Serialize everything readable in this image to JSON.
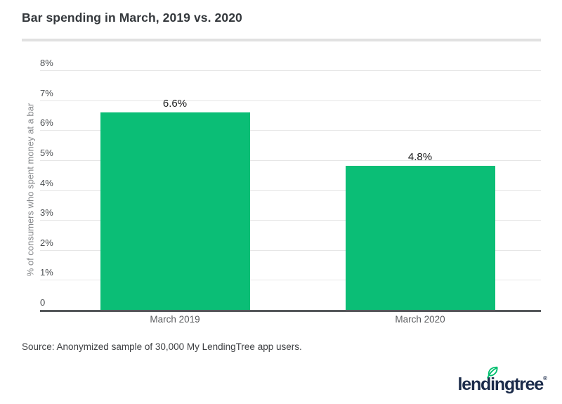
{
  "header": {
    "title": "Bar spending in March, 2019 vs. 2020"
  },
  "chart_data": {
    "type": "bar",
    "title": "Bar spending in March, 2019 vs. 2020",
    "categories": [
      "March 2019",
      "March 2020"
    ],
    "values": [
      6.6,
      4.8
    ],
    "value_labels": [
      "6.6%",
      "4.8%"
    ],
    "xlabel": "",
    "ylabel": "% of consumers who spent money at a bar",
    "ylim": [
      0,
      8
    ],
    "yticks": [
      {
        "v": 8,
        "label": "8%"
      },
      {
        "v": 7,
        "label": "7%"
      },
      {
        "v": 6,
        "label": "6%"
      },
      {
        "v": 5,
        "label": "5%"
      },
      {
        "v": 4,
        "label": "4%"
      },
      {
        "v": 3,
        "label": "3%"
      },
      {
        "v": 2,
        "label": "2%"
      },
      {
        "v": 1,
        "label": "1%"
      },
      {
        "v": 0,
        "label": "0"
      }
    ],
    "grid": true,
    "legend": "none",
    "bar_color": "#0bbe76",
    "gridline_color": "#e6e6e6",
    "axis_line_color": "#54575a"
  },
  "footer": {
    "source": "Source: Anonymized sample of 30,000 My LendingTree app users."
  },
  "logo": {
    "part1": "lend",
    "part2": "i",
    "part3": "ngtree",
    "registered": "®",
    "navy": "#1b2b4a",
    "leaf_color": "#00bf6f"
  }
}
